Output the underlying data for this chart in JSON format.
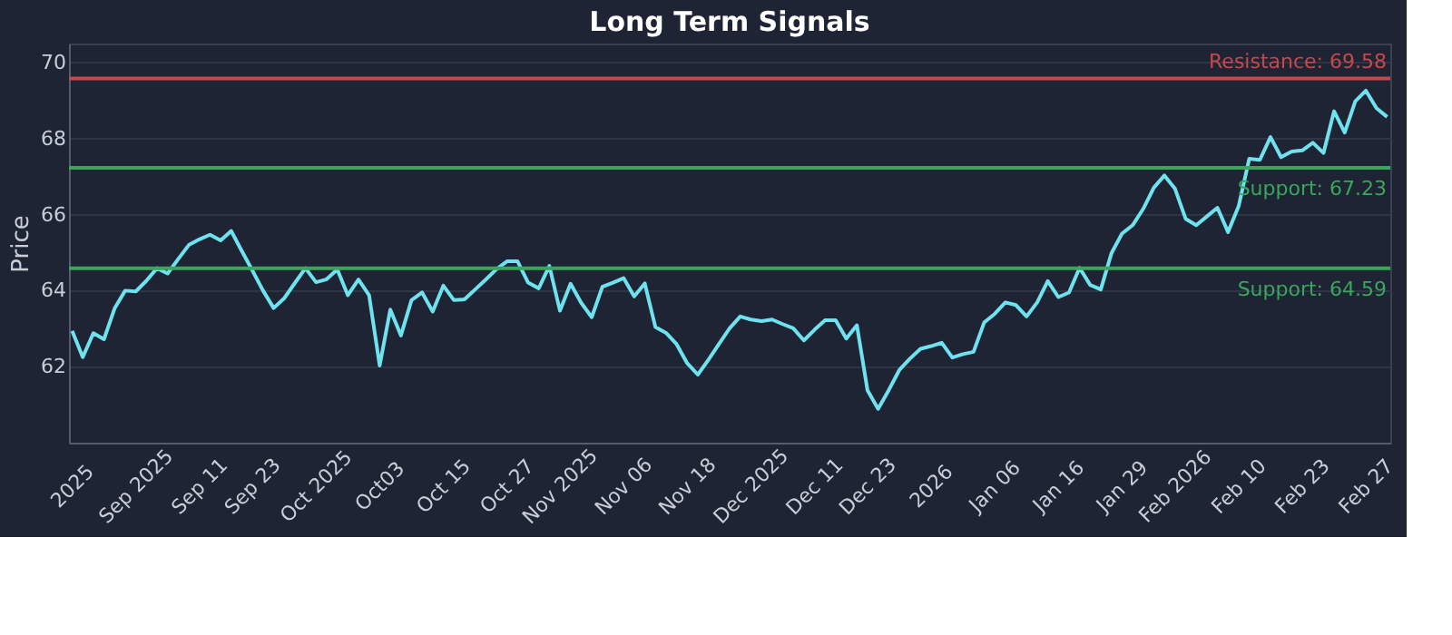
{
  "chart_data": {
    "type": "line",
    "title": "Long Term Signals",
    "ylabel": "Price",
    "categories": [
      "2025",
      null,
      null,
      null,
      null,
      null,
      "Sep 2025",
      null,
      null,
      null,
      null,
      null,
      "Sep 11",
      null,
      null,
      null,
      null,
      "Sep 23",
      null,
      null,
      null,
      null,
      null,
      "Oct 2025",
      null,
      null,
      null,
      null,
      null,
      "Oct03",
      null,
      null,
      null,
      null,
      null,
      "Oct 15",
      null,
      null,
      null,
      null,
      null,
      "Oct 27",
      null,
      null,
      null,
      null,
      "Nov 2025",
      null,
      null,
      null,
      null,
      null,
      "Nov 06",
      null,
      null,
      null,
      null,
      null,
      "Nov 18",
      null,
      null,
      null,
      null,
      null,
      "Dec 2025",
      null,
      null,
      null,
      null,
      null,
      "Dec 11",
      null,
      null,
      null,
      null,
      "Dec 23",
      null,
      null,
      null,
      null,
      null,
      "2026",
      null,
      null,
      null,
      null,
      null,
      "Jan 06",
      null,
      null,
      null,
      null,
      null,
      "Jan 16",
      null,
      null,
      null,
      null,
      null,
      "Jan 29",
      null,
      null,
      null,
      null,
      "Feb 2026",
      null,
      null,
      null,
      null,
      null,
      "Feb 10",
      null,
      null,
      null,
      null,
      null,
      "Feb 23",
      null,
      null,
      null,
      null,
      null,
      "Feb 27",
      null,
      null
    ],
    "series": [
      {
        "color": "#6ee3ef",
        "values": [
          62.94,
          62.25,
          62.88,
          62.72,
          63.53,
          64.0,
          63.98,
          64.26,
          64.59,
          64.45,
          64.83,
          65.2,
          65.35,
          65.47,
          65.32,
          65.57,
          65.04,
          64.53,
          64.0,
          63.54,
          63.8,
          64.2,
          64.59,
          64.22,
          64.3,
          64.56,
          63.88,
          64.29,
          63.88,
          62.03,
          63.5,
          62.82,
          63.75,
          63.95,
          63.45,
          64.13,
          63.75,
          63.77,
          64.03,
          64.29,
          64.56,
          64.77,
          64.77,
          64.21,
          64.06,
          64.65,
          63.47,
          64.18,
          63.68,
          63.3,
          64.1,
          64.21,
          64.33,
          63.85,
          64.19,
          63.04,
          62.89,
          62.59,
          62.09,
          61.79,
          62.18,
          62.6,
          63.01,
          63.32,
          63.24,
          63.2,
          63.24,
          63.12,
          63.01,
          62.69,
          62.97,
          63.22,
          63.22,
          62.74,
          63.09,
          61.38,
          60.89,
          61.38,
          61.91,
          62.21,
          62.47,
          62.54,
          62.63,
          62.24,
          62.33,
          62.39,
          63.16,
          63.39,
          63.69,
          63.62,
          63.32,
          63.69,
          64.25,
          63.83,
          63.95,
          64.6,
          64.15,
          64.03,
          64.98,
          65.5,
          65.72,
          66.15,
          66.71,
          67.03,
          66.68,
          65.89,
          65.72,
          65.95,
          66.18,
          65.54,
          66.22,
          67.47,
          67.44,
          68.04,
          67.51,
          67.66,
          67.69,
          67.89,
          67.62,
          68.72,
          68.16,
          68.98,
          69.26,
          68.8,
          68.57
        ]
      }
    ],
    "ylim": [
      60,
      70.5
    ],
    "yticks": [
      62,
      64,
      66,
      68,
      70
    ],
    "grid": "y",
    "ref_lines": [
      {
        "axis": "y",
        "value": 69.58,
        "label": "Resistance: 69.58",
        "color": "#c9474b"
      },
      {
        "axis": "y",
        "value": 67.23,
        "label": "Support: 67.23",
        "color": "#3aa55c"
      },
      {
        "axis": "y",
        "value": 64.59,
        "label": "Support: 64.59",
        "color": "#3aa55c"
      }
    ]
  }
}
